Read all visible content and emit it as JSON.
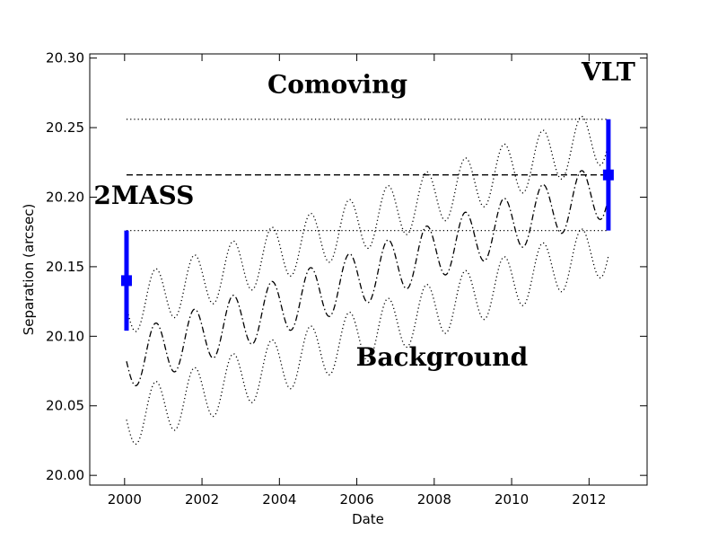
{
  "chart_data": {
    "type": "line",
    "title": "",
    "xlabel": "Date",
    "ylabel": "Separation (arcsec)",
    "xlim": [
      1999.1,
      2013.5
    ],
    "ylim": [
      19.993,
      20.303
    ],
    "x_ticks": [
      2000,
      2002,
      2004,
      2006,
      2008,
      2010,
      2012
    ],
    "y_ticks": [
      20.0,
      20.05,
      20.1,
      20.15,
      20.2,
      20.25,
      20.3
    ],
    "y_tick_labels": [
      "20.00",
      "20.05",
      "20.10",
      "20.15",
      "20.20",
      "20.25",
      "20.30"
    ],
    "grid": false,
    "reference_lines": [
      {
        "name": "Comoving upper bound",
        "y": 20.256,
        "x_range": [
          2000.05,
          2012.5
        ],
        "style": "dotted"
      },
      {
        "name": "Comoving (VLT value)",
        "y": 20.216,
        "x_range": [
          2000.05,
          2012.5
        ],
        "style": "dashed"
      },
      {
        "name": "Comoving lower bound",
        "y": 20.176,
        "x_range": [
          2000.05,
          2012.5
        ],
        "style": "dotted"
      }
    ],
    "background_tracks": {
      "x_range": [
        2000.05,
        2012.5
      ],
      "parallax_amplitude": 0.02,
      "parallax_period_years": 1.0,
      "series": [
        {
          "name": "Background upper",
          "start": 20.121,
          "end": 20.245,
          "style": "dotted"
        },
        {
          "name": "Background nominal",
          "start": 20.082,
          "end": 20.206,
          "style": "dashdot"
        },
        {
          "name": "Background lower",
          "start": 20.04,
          "end": 20.164,
          "style": "dotted"
        }
      ]
    },
    "measurements": [
      {
        "name": "2MASS",
        "x": 2000.05,
        "y": 20.14,
        "yerr": 0.036,
        "color": "#0000ff"
      },
      {
        "name": "VLT",
        "x": 2012.5,
        "y": 20.216,
        "yerr": 0.04,
        "color": "#0000ff"
      }
    ],
    "annotations": [
      {
        "text": "Comoving",
        "x": 2005.5,
        "y": 20.275
      },
      {
        "text": "VLT",
        "x": 2012.5,
        "y": 20.284
      },
      {
        "text": "2MASS",
        "x": 2000.5,
        "y": 20.195
      },
      {
        "text": "Background",
        "x": 2008.2,
        "y": 20.079
      }
    ]
  }
}
